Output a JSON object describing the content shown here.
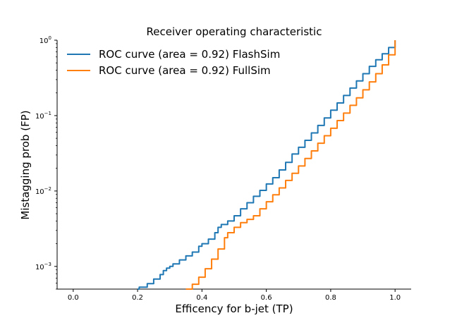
{
  "chart_data": {
    "type": "line",
    "title": "Receiver operating characteristic",
    "xlabel": "Efficency for b-jet (TP)",
    "ylabel": "Mistagging prob (FP)",
    "xlim": [
      -0.05,
      1.05
    ],
    "ylim": [
      0.0005,
      1.0
    ],
    "yscale": "log",
    "xticks": [
      {
        "value": 0.0,
        "label": "0.0"
      },
      {
        "value": 0.2,
        "label": "0.2"
      },
      {
        "value": 0.4,
        "label": "0.4"
      },
      {
        "value": 0.6,
        "label": "0.6"
      },
      {
        "value": 0.8,
        "label": "0.8"
      },
      {
        "value": 1.0,
        "label": "1.0"
      }
    ],
    "yticks": [
      {
        "value": 0.001,
        "base": "10",
        "exp": "−3"
      },
      {
        "value": 0.01,
        "base": "10",
        "exp": "−2"
      },
      {
        "value": 0.1,
        "base": "10",
        "exp": "−1"
      },
      {
        "value": 1.0,
        "base": "10",
        "exp": "0"
      }
    ],
    "grid": false,
    "legend_position": "upper-left",
    "series": [
      {
        "name": "ROC curve (area = 0.92) FlashSim",
        "color": "#1f77b4",
        "x": [
          0.2,
          0.205,
          0.23,
          0.25,
          0.27,
          0.28,
          0.29,
          0.3,
          0.31,
          0.33,
          0.35,
          0.37,
          0.39,
          0.4,
          0.42,
          0.44,
          0.45,
          0.46,
          0.48,
          0.5,
          0.52,
          0.54,
          0.56,
          0.58,
          0.6,
          0.62,
          0.64,
          0.66,
          0.68,
          0.7,
          0.72,
          0.74,
          0.76,
          0.78,
          0.8,
          0.82,
          0.84,
          0.86,
          0.88,
          0.9,
          0.92,
          0.94,
          0.96,
          0.98,
          1.0
        ],
        "y": [
          0.0005,
          0.00053,
          0.00059,
          0.00068,
          0.00078,
          0.00088,
          0.00095,
          0.001,
          0.00108,
          0.00122,
          0.00138,
          0.00155,
          0.00185,
          0.002,
          0.0023,
          0.0028,
          0.0033,
          0.0036,
          0.004,
          0.0047,
          0.0058,
          0.007,
          0.0085,
          0.0102,
          0.0124,
          0.015,
          0.019,
          0.024,
          0.031,
          0.038,
          0.047,
          0.059,
          0.074,
          0.093,
          0.118,
          0.147,
          0.185,
          0.232,
          0.288,
          0.36,
          0.45,
          0.55,
          0.66,
          0.8,
          1.0
        ]
      },
      {
        "name": "ROC curve (area = 0.92) FullSim",
        "color": "#ff7f0e",
        "x": [
          0.35,
          0.37,
          0.39,
          0.41,
          0.43,
          0.45,
          0.47,
          0.48,
          0.5,
          0.52,
          0.54,
          0.56,
          0.58,
          0.6,
          0.62,
          0.64,
          0.66,
          0.68,
          0.7,
          0.72,
          0.74,
          0.76,
          0.78,
          0.8,
          0.82,
          0.84,
          0.86,
          0.88,
          0.9,
          0.92,
          0.94,
          0.96,
          0.98,
          1.0
        ],
        "y": [
          0.0005,
          0.00058,
          0.00072,
          0.00093,
          0.00125,
          0.0017,
          0.0024,
          0.0028,
          0.0033,
          0.0038,
          0.0042,
          0.0047,
          0.0058,
          0.0072,
          0.0089,
          0.011,
          0.0138,
          0.0172,
          0.0215,
          0.027,
          0.034,
          0.043,
          0.054,
          0.068,
          0.086,
          0.108,
          0.137,
          0.172,
          0.22,
          0.28,
          0.36,
          0.47,
          0.64,
          1.0
        ]
      }
    ]
  }
}
